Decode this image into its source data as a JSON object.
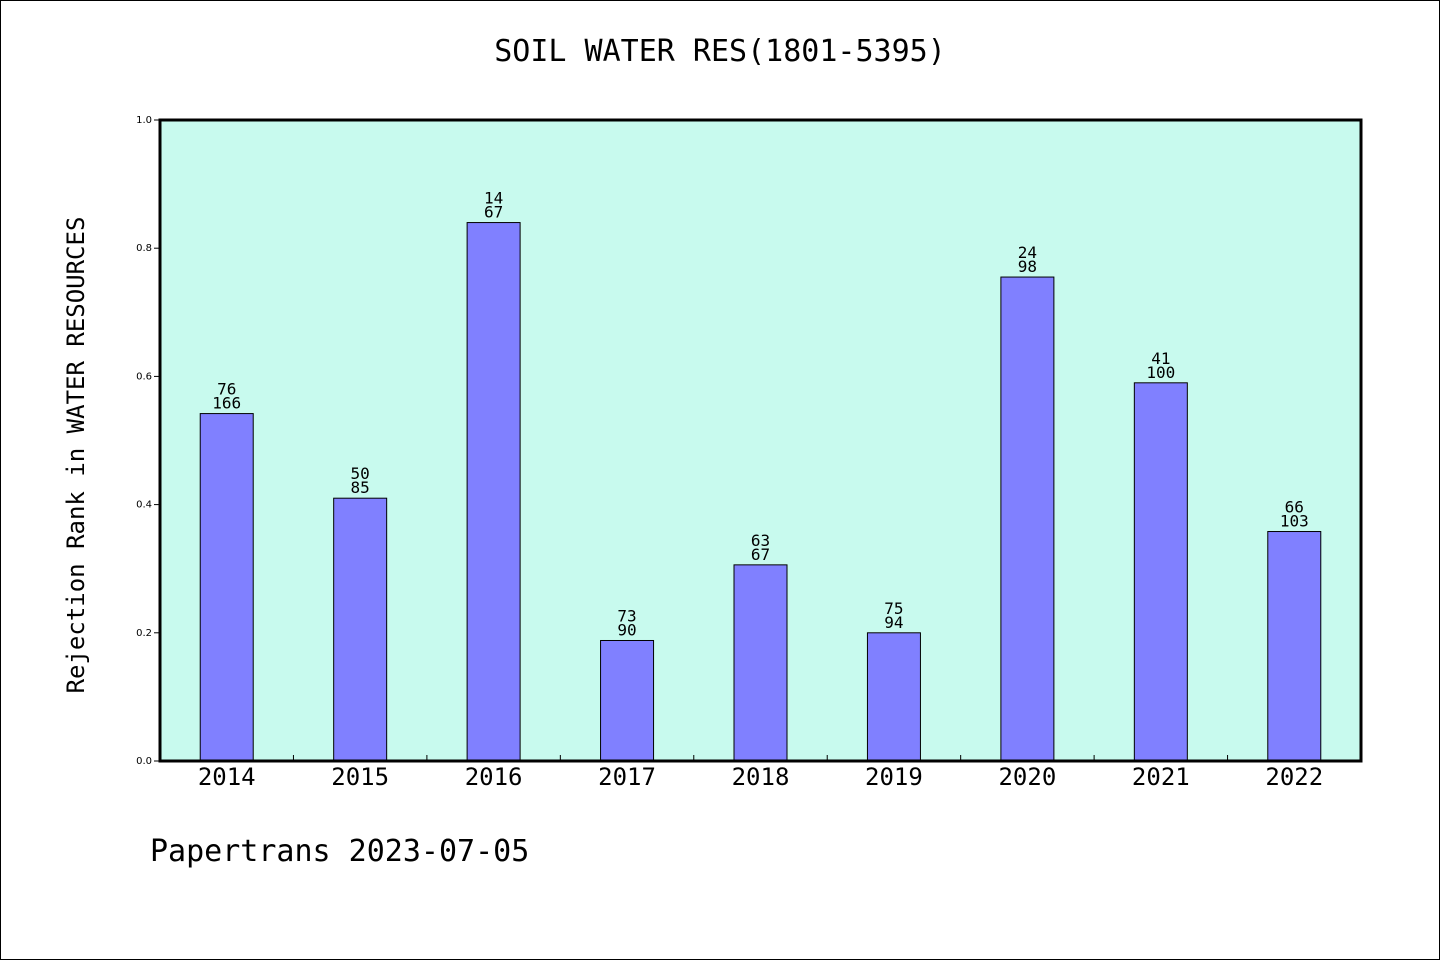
{
  "chart_data": {
    "type": "bar",
    "title": "SOIL WATER RES(1801-5395)",
    "ylabel": "Rejection Rank in WATER RESOURCES",
    "xlabel": "",
    "categories": [
      "2014",
      "2015",
      "2016",
      "2017",
      "2018",
      "2019",
      "2020",
      "2021",
      "2022"
    ],
    "values": [
      0.542,
      0.41,
      0.84,
      0.188,
      0.306,
      0.2,
      0.755,
      0.59,
      0.358
    ],
    "label_top": [
      "76",
      "50",
      "14",
      "73",
      "63",
      "75",
      "24",
      "41",
      "66"
    ],
    "label_bottom": [
      "166",
      "85",
      "67",
      "90",
      "67",
      "94",
      "98",
      "100",
      "103"
    ],
    "ylim": [
      0,
      1.0
    ],
    "yticks": [
      "0.0",
      "0.2",
      "0.4",
      "0.6",
      "0.8",
      "1.0"
    ],
    "grid": false,
    "colors": {
      "plot_background": "#c8faee",
      "bar_fill": "#8080ff",
      "bar_stroke": "#000000"
    }
  },
  "footer": "Papertrans 2023-07-05"
}
